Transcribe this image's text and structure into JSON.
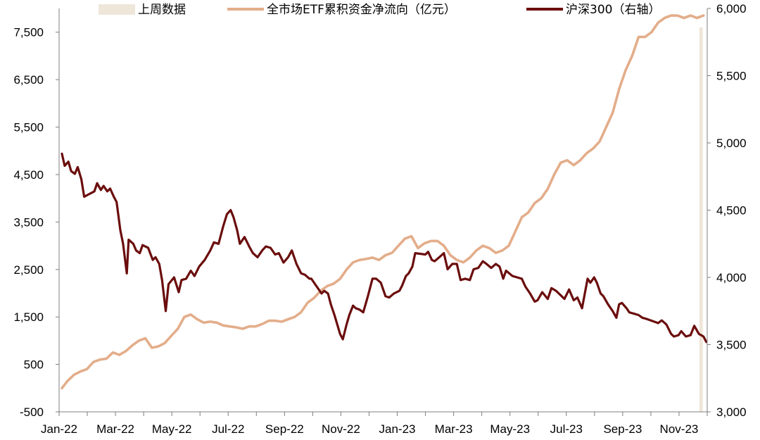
{
  "chart_data": {
    "type": "line",
    "title": "",
    "xlabel": "",
    "ylabel_left": "",
    "ylabel_right": "",
    "x_tick_labels": [
      "Jan-22",
      "Mar-22",
      "May-22",
      "Jul-22",
      "Sep-22",
      "Nov-22",
      "Jan-23",
      "Mar-23",
      "May-23",
      "Jul-23",
      "Sep-23",
      "Nov-23"
    ],
    "y_left": {
      "ylim": [
        -500,
        8000
      ],
      "ticks": [
        -500,
        500,
        1500,
        2500,
        3500,
        4500,
        5500,
        6500,
        7500
      ],
      "tick_labels": [
        "-500",
        "500",
        "1,500",
        "2,500",
        "3,500",
        "4,500",
        "5,500",
        "6,500",
        "7,500"
      ]
    },
    "y_right": {
      "ylim": [
        3000,
        6000
      ],
      "ticks": [
        3000,
        3500,
        4000,
        4500,
        5000,
        5500,
        6000
      ],
      "tick_labels": [
        "3,000",
        "3,500",
        "4,000",
        "4,500",
        "5,000",
        "5,500",
        "6,000"
      ]
    },
    "x_range": [
      "2022-01-01",
      "2023-12-01"
    ],
    "legend_position": "top",
    "grid": false,
    "series": [
      {
        "name": "上周数据",
        "kind": "bar",
        "axis": "left",
        "color": "#efe6da",
        "points": [
          [
            "2023-11-24",
            7600
          ]
        ]
      },
      {
        "name": "全市场ETF累积资金净流向（亿元）",
        "kind": "line",
        "axis": "left",
        "color": "#e3ad8a",
        "points": [
          [
            "2022-01-04",
            0
          ],
          [
            "2022-01-10",
            150
          ],
          [
            "2022-01-17",
            280
          ],
          [
            "2022-01-24",
            350
          ],
          [
            "2022-01-31",
            400
          ],
          [
            "2022-02-07",
            550
          ],
          [
            "2022-02-14",
            600
          ],
          [
            "2022-02-21",
            620
          ],
          [
            "2022-02-28",
            750
          ],
          [
            "2022-03-07",
            700
          ],
          [
            "2022-03-14",
            780
          ],
          [
            "2022-03-21",
            900
          ],
          [
            "2022-03-28",
            1000
          ],
          [
            "2022-04-04",
            1050
          ],
          [
            "2022-04-11",
            850
          ],
          [
            "2022-04-18",
            880
          ],
          [
            "2022-04-25",
            950
          ],
          [
            "2022-05-02",
            1100
          ],
          [
            "2022-05-09",
            1250
          ],
          [
            "2022-05-16",
            1500
          ],
          [
            "2022-05-23",
            1550
          ],
          [
            "2022-05-30",
            1450
          ],
          [
            "2022-06-06",
            1380
          ],
          [
            "2022-06-13",
            1400
          ],
          [
            "2022-06-20",
            1380
          ],
          [
            "2022-06-27",
            1320
          ],
          [
            "2022-07-04",
            1300
          ],
          [
            "2022-07-11",
            1280
          ],
          [
            "2022-07-18",
            1250
          ],
          [
            "2022-07-25",
            1300
          ],
          [
            "2022-08-01",
            1300
          ],
          [
            "2022-08-08",
            1350
          ],
          [
            "2022-08-15",
            1420
          ],
          [
            "2022-08-22",
            1420
          ],
          [
            "2022-08-29",
            1400
          ],
          [
            "2022-09-05",
            1450
          ],
          [
            "2022-09-12",
            1500
          ],
          [
            "2022-09-19",
            1600
          ],
          [
            "2022-09-26",
            1800
          ],
          [
            "2022-10-03",
            1900
          ],
          [
            "2022-10-10",
            2050
          ],
          [
            "2022-10-17",
            2150
          ],
          [
            "2022-10-24",
            2200
          ],
          [
            "2022-10-31",
            2300
          ],
          [
            "2022-11-07",
            2500
          ],
          [
            "2022-11-14",
            2650
          ],
          [
            "2022-11-21",
            2700
          ],
          [
            "2022-11-28",
            2720
          ],
          [
            "2022-12-05",
            2750
          ],
          [
            "2022-12-12",
            2700
          ],
          [
            "2022-12-19",
            2800
          ],
          [
            "2022-12-26",
            2850
          ],
          [
            "2023-01-02",
            3000
          ],
          [
            "2023-01-09",
            3150
          ],
          [
            "2023-01-16",
            3200
          ],
          [
            "2023-01-23",
            2950
          ],
          [
            "2023-01-30",
            3050
          ],
          [
            "2023-02-06",
            3100
          ],
          [
            "2023-02-13",
            3100
          ],
          [
            "2023-02-20",
            3000
          ],
          [
            "2023-02-27",
            2800
          ],
          [
            "2023-03-06",
            2700
          ],
          [
            "2023-03-13",
            2650
          ],
          [
            "2023-03-20",
            2750
          ],
          [
            "2023-03-27",
            2900
          ],
          [
            "2023-04-03",
            3000
          ],
          [
            "2023-04-10",
            2950
          ],
          [
            "2023-04-17",
            2850
          ],
          [
            "2023-04-24",
            2900
          ],
          [
            "2023-05-01",
            3000
          ],
          [
            "2023-05-08",
            3300
          ],
          [
            "2023-05-15",
            3600
          ],
          [
            "2023-05-22",
            3700
          ],
          [
            "2023-05-29",
            3900
          ],
          [
            "2023-06-05",
            4000
          ],
          [
            "2023-06-12",
            4200
          ],
          [
            "2023-06-19",
            4500
          ],
          [
            "2023-06-26",
            4750
          ],
          [
            "2023-07-03",
            4800
          ],
          [
            "2023-07-10",
            4700
          ],
          [
            "2023-07-17",
            4800
          ],
          [
            "2023-07-24",
            4950
          ],
          [
            "2023-07-31",
            5050
          ],
          [
            "2023-08-07",
            5200
          ],
          [
            "2023-08-14",
            5500
          ],
          [
            "2023-08-21",
            5800
          ],
          [
            "2023-08-28",
            6300
          ],
          [
            "2023-09-04",
            6700
          ],
          [
            "2023-09-11",
            7000
          ],
          [
            "2023-09-18",
            7400
          ],
          [
            "2023-09-25",
            7400
          ],
          [
            "2023-10-02",
            7500
          ],
          [
            "2023-10-09",
            7700
          ],
          [
            "2023-10-16",
            7800
          ],
          [
            "2023-10-23",
            7850
          ],
          [
            "2023-10-30",
            7850
          ],
          [
            "2023-11-06",
            7800
          ],
          [
            "2023-11-13",
            7850
          ],
          [
            "2023-11-20",
            7800
          ],
          [
            "2023-11-27",
            7850
          ]
        ]
      },
      {
        "name": "沪深300（右轴）",
        "kind": "line",
        "axis": "right",
        "color": "#6b0d0d",
        "points": [
          [
            "2022-01-04",
            4920
          ],
          [
            "2022-01-07",
            4830
          ],
          [
            "2022-01-11",
            4860
          ],
          [
            "2022-01-14",
            4790
          ],
          [
            "2022-01-18",
            4770
          ],
          [
            "2022-01-21",
            4820
          ],
          [
            "2022-01-25",
            4730
          ],
          [
            "2022-01-28",
            4600
          ],
          [
            "2022-02-08",
            4640
          ],
          [
            "2022-02-11",
            4700
          ],
          [
            "2022-02-15",
            4650
          ],
          [
            "2022-02-18",
            4680
          ],
          [
            "2022-02-22",
            4640
          ],
          [
            "2022-02-25",
            4660
          ],
          [
            "2022-03-01",
            4600
          ],
          [
            "2022-03-04",
            4560
          ],
          [
            "2022-03-08",
            4350
          ],
          [
            "2022-03-11",
            4250
          ],
          [
            "2022-03-15",
            4030
          ],
          [
            "2022-03-17",
            4280
          ],
          [
            "2022-03-22",
            4250
          ],
          [
            "2022-03-25",
            4200
          ],
          [
            "2022-03-29",
            4180
          ],
          [
            "2022-04-01",
            4240
          ],
          [
            "2022-04-07",
            4220
          ],
          [
            "2022-04-12",
            4130
          ],
          [
            "2022-04-15",
            4150
          ],
          [
            "2022-04-19",
            4100
          ],
          [
            "2022-04-22",
            3980
          ],
          [
            "2022-04-26",
            3750
          ],
          [
            "2022-04-29",
            3950
          ],
          [
            "2022-05-05",
            4000
          ],
          [
            "2022-05-10",
            3890
          ],
          [
            "2022-05-13",
            3980
          ],
          [
            "2022-05-18",
            3990
          ],
          [
            "2022-05-23",
            4050
          ],
          [
            "2022-05-27",
            4010
          ],
          [
            "2022-06-01",
            4080
          ],
          [
            "2022-06-07",
            4130
          ],
          [
            "2022-06-13",
            4200
          ],
          [
            "2022-06-17",
            4260
          ],
          [
            "2022-06-22",
            4250
          ],
          [
            "2022-06-27",
            4380
          ],
          [
            "2022-07-01",
            4470
          ],
          [
            "2022-07-05",
            4500
          ],
          [
            "2022-07-08",
            4450
          ],
          [
            "2022-07-12",
            4350
          ],
          [
            "2022-07-15",
            4250
          ],
          [
            "2022-07-20",
            4300
          ],
          [
            "2022-07-25",
            4230
          ],
          [
            "2022-07-29",
            4180
          ],
          [
            "2022-08-03",
            4150
          ],
          [
            "2022-08-08",
            4200
          ],
          [
            "2022-08-12",
            4230
          ],
          [
            "2022-08-17",
            4220
          ],
          [
            "2022-08-22",
            4170
          ],
          [
            "2022-08-26",
            4180
          ],
          [
            "2022-08-31",
            4110
          ],
          [
            "2022-09-05",
            4150
          ],
          [
            "2022-09-09",
            4200
          ],
          [
            "2022-09-14",
            4100
          ],
          [
            "2022-09-19",
            4030
          ],
          [
            "2022-09-23",
            4020
          ],
          [
            "2022-09-28",
            3990
          ],
          [
            "2022-09-30",
            3990
          ],
          [
            "2022-10-11",
            3880
          ],
          [
            "2022-10-14",
            3900
          ],
          [
            "2022-10-18",
            3880
          ],
          [
            "2022-10-21",
            3800
          ],
          [
            "2022-10-25",
            3720
          ],
          [
            "2022-10-31",
            3580
          ],
          [
            "2022-11-03",
            3540
          ],
          [
            "2022-11-07",
            3650
          ],
          [
            "2022-11-10",
            3720
          ],
          [
            "2022-11-14",
            3790
          ],
          [
            "2022-11-17",
            3770
          ],
          [
            "2022-11-21",
            3760
          ],
          [
            "2022-11-25",
            3740
          ],
          [
            "2022-11-30",
            3860
          ],
          [
            "2022-12-05",
            3990
          ],
          [
            "2022-12-09",
            3990
          ],
          [
            "2022-12-14",
            3960
          ],
          [
            "2022-12-19",
            3860
          ],
          [
            "2022-12-23",
            3850
          ],
          [
            "2022-12-28",
            3880
          ],
          [
            "2023-01-03",
            3900
          ],
          [
            "2023-01-06",
            3940
          ],
          [
            "2023-01-10",
            4010
          ],
          [
            "2023-01-13",
            4030
          ],
          [
            "2023-01-17",
            4080
          ],
          [
            "2023-01-20",
            4180
          ],
          [
            "2023-01-31",
            4170
          ],
          [
            "2023-02-03",
            4190
          ],
          [
            "2023-02-07",
            4130
          ],
          [
            "2023-02-10",
            4120
          ],
          [
            "2023-02-15",
            4150
          ],
          [
            "2023-02-20",
            4180
          ],
          [
            "2023-02-24",
            4060
          ],
          [
            "2023-03-01",
            4100
          ],
          [
            "2023-03-06",
            4100
          ],
          [
            "2023-03-10",
            3980
          ],
          [
            "2023-03-15",
            3990
          ],
          [
            "2023-03-20",
            3980
          ],
          [
            "2023-03-24",
            4060
          ],
          [
            "2023-03-29",
            4070
          ],
          [
            "2023-04-03",
            4120
          ],
          [
            "2023-04-07",
            4100
          ],
          [
            "2023-04-12",
            4070
          ],
          [
            "2023-04-17",
            4100
          ],
          [
            "2023-04-21",
            4080
          ],
          [
            "2023-04-25",
            3990
          ],
          [
            "2023-04-28",
            4050
          ],
          [
            "2023-05-05",
            4010
          ],
          [
            "2023-05-10",
            4000
          ],
          [
            "2023-05-15",
            3990
          ],
          [
            "2023-05-19",
            3930
          ],
          [
            "2023-05-24",
            3880
          ],
          [
            "2023-05-29",
            3820
          ],
          [
            "2023-06-01",
            3830
          ],
          [
            "2023-06-06",
            3890
          ],
          [
            "2023-06-12",
            3840
          ],
          [
            "2023-06-16",
            3920
          ],
          [
            "2023-06-21",
            3900
          ],
          [
            "2023-06-27",
            3860
          ],
          [
            "2023-06-30",
            3840
          ],
          [
            "2023-07-05",
            3910
          ],
          [
            "2023-07-10",
            3830
          ],
          [
            "2023-07-14",
            3850
          ],
          [
            "2023-07-19",
            3770
          ],
          [
            "2023-07-25",
            3990
          ],
          [
            "2023-07-28",
            3960
          ],
          [
            "2023-08-01",
            4000
          ],
          [
            "2023-08-04",
            3960
          ],
          [
            "2023-08-08",
            3880
          ],
          [
            "2023-08-11",
            3860
          ],
          [
            "2023-08-16",
            3800
          ],
          [
            "2023-08-21",
            3750
          ],
          [
            "2023-08-25",
            3700
          ],
          [
            "2023-08-28",
            3800
          ],
          [
            "2023-08-31",
            3810
          ],
          [
            "2023-09-05",
            3770
          ],
          [
            "2023-09-08",
            3740
          ],
          [
            "2023-09-13",
            3730
          ],
          [
            "2023-09-18",
            3720
          ],
          [
            "2023-09-22",
            3700
          ],
          [
            "2023-09-27",
            3690
          ],
          [
            "2023-10-09",
            3660
          ],
          [
            "2023-10-13",
            3680
          ],
          [
            "2023-10-18",
            3650
          ],
          [
            "2023-10-23",
            3580
          ],
          [
            "2023-10-26",
            3560
          ],
          [
            "2023-10-31",
            3570
          ],
          [
            "2023-11-03",
            3600
          ],
          [
            "2023-11-08",
            3560
          ],
          [
            "2023-11-13",
            3570
          ],
          [
            "2023-11-17",
            3640
          ],
          [
            "2023-11-22",
            3580
          ],
          [
            "2023-11-27",
            3560
          ],
          [
            "2023-11-30",
            3520
          ]
        ]
      }
    ]
  }
}
